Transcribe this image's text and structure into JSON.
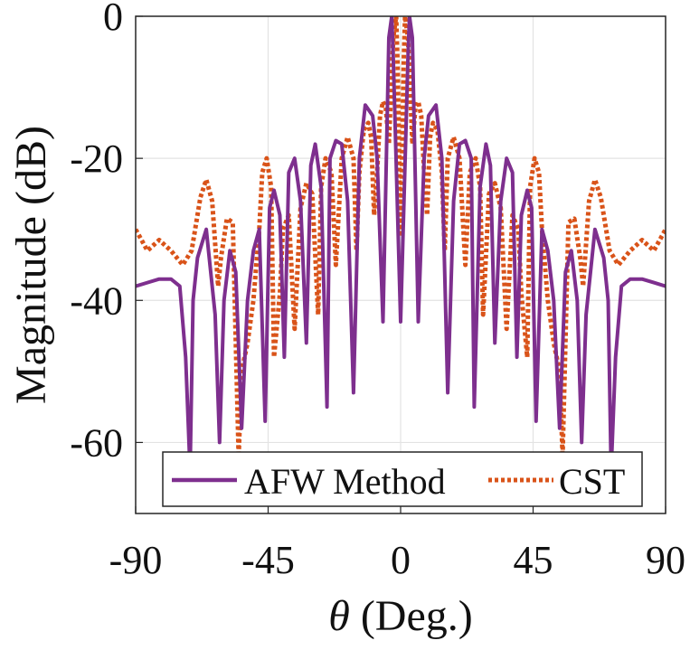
{
  "chart_data": {
    "type": "line",
    "title": "",
    "xlabel_symbol": "θ",
    "xlabel_rest": " (Deg.)",
    "ylabel": "Magnitude (dB)",
    "xlim": [
      -90,
      90
    ],
    "ylim": [
      -70,
      0
    ],
    "xticks": [
      -90,
      -45,
      0,
      45,
      90
    ],
    "yticks": [
      0,
      -20,
      -40,
      -60
    ],
    "xtick_labels": [
      "-90",
      "-45",
      "0",
      "45",
      "90"
    ],
    "ytick_labels": [
      "0",
      "-20",
      "-40",
      "-60"
    ],
    "grid": true,
    "legend_position": "bottom",
    "colors": {
      "afw": "#7E2F8E",
      "cst": "#D95319"
    },
    "series": [
      {
        "name": "AFW Method",
        "style": "solid",
        "color": "#7E2F8E",
        "points": [
          [
            0,
            -43
          ],
          [
            2.5,
            -6
          ],
          [
            3,
            0
          ],
          [
            4,
            -3
          ],
          [
            6,
            -43
          ],
          [
            8,
            -20
          ],
          [
            9.5,
            -14
          ],
          [
            12,
            -12.5
          ],
          [
            14,
            -20
          ],
          [
            16,
            -53
          ],
          [
            18,
            -26
          ],
          [
            20,
            -18
          ],
          [
            22,
            -17.5
          ],
          [
            24,
            -20
          ],
          [
            25,
            -55
          ],
          [
            27,
            -24
          ],
          [
            29,
            -18
          ],
          [
            30.5,
            -21
          ],
          [
            32,
            -46
          ],
          [
            34,
            -26
          ],
          [
            36,
            -20
          ],
          [
            38,
            -22
          ],
          [
            39.5,
            -48
          ],
          [
            41,
            -28
          ],
          [
            43,
            -24.5
          ],
          [
            44.5,
            -27
          ],
          [
            46,
            -57
          ],
          [
            48,
            -30
          ],
          [
            50,
            -33
          ],
          [
            52,
            -40
          ],
          [
            54,
            -58
          ],
          [
            56,
            -36
          ],
          [
            58,
            -33
          ],
          [
            60,
            -40
          ],
          [
            61.5,
            -60
          ],
          [
            63,
            -42
          ],
          [
            66,
            -30
          ],
          [
            69,
            -34
          ],
          [
            70.5,
            -40
          ],
          [
            71.5,
            -64
          ],
          [
            73,
            -48
          ],
          [
            75,
            -38
          ],
          [
            78,
            -37
          ],
          [
            82,
            -37
          ],
          [
            86,
            -37.5
          ],
          [
            90,
            -38
          ]
        ]
      },
      {
        "name": "CST",
        "style": "dotted",
        "color": "#D95319",
        "points": [
          [
            0,
            -31
          ],
          [
            1,
            -7
          ],
          [
            1.5,
            0
          ],
          [
            2.5,
            -3
          ],
          [
            4,
            -18
          ],
          [
            5,
            -13
          ],
          [
            6,
            -12
          ],
          [
            7,
            -14
          ],
          [
            8,
            -22
          ],
          [
            9,
            -28
          ],
          [
            10,
            -17
          ],
          [
            11,
            -15
          ],
          [
            12.5,
            -16
          ],
          [
            14,
            -22
          ],
          [
            15,
            -33
          ],
          [
            16,
            -20
          ],
          [
            18,
            -17
          ],
          [
            20,
            -20
          ],
          [
            22,
            -35
          ],
          [
            23.5,
            -22
          ],
          [
            25.5,
            -20
          ],
          [
            27,
            -24
          ],
          [
            28,
            -42
          ],
          [
            30,
            -25
          ],
          [
            32,
            -23.5
          ],
          [
            34,
            -27
          ],
          [
            36,
            -44
          ],
          [
            38,
            -28
          ],
          [
            40,
            -30
          ],
          [
            41,
            -39
          ],
          [
            43,
            -48
          ],
          [
            44,
            -24
          ],
          [
            45.5,
            -20
          ],
          [
            47,
            -22
          ],
          [
            48,
            -30
          ],
          [
            50,
            -40
          ],
          [
            52,
            -46
          ],
          [
            54,
            -50
          ],
          [
            55,
            -62
          ],
          [
            57,
            -29
          ],
          [
            59,
            -28.5
          ],
          [
            61,
            -34
          ],
          [
            62,
            -38
          ],
          [
            64,
            -26
          ],
          [
            66,
            -23
          ],
          [
            68,
            -25.5
          ],
          [
            71,
            -33
          ],
          [
            74,
            -35
          ],
          [
            78,
            -33
          ],
          [
            82,
            -31.5
          ],
          [
            86,
            -33
          ],
          [
            90,
            -30
          ]
        ]
      }
    ]
  }
}
